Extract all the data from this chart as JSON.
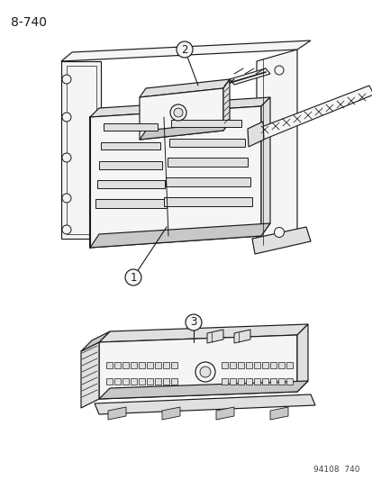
{
  "page_ref": "8-740",
  "footer_ref": "94108  740",
  "bg_color": "#ffffff",
  "fg_color": "#1a1a1a",
  "lw": 0.85
}
